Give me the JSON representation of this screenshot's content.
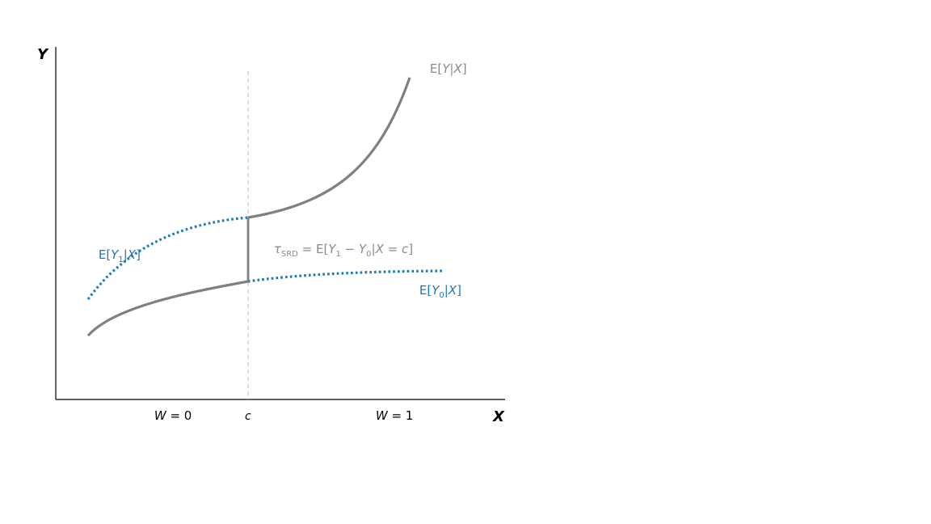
{
  "axes": {
    "y_label": "Y",
    "x_label": "X"
  },
  "regions": {
    "left": {
      "var": "W",
      "eq": " = ",
      "val": "0"
    },
    "right": {
      "var": "W",
      "eq": " = ",
      "val": "1"
    }
  },
  "cutoff_label": "c",
  "curves": {
    "observed": {
      "pre": "E[",
      "v1": "Y",
      "bar": "|",
      "v2": "X",
      "post": "]"
    },
    "treated": {
      "pre": "E[",
      "v1": "Y",
      "sub": "1",
      "bar": "|",
      "v2": "X",
      "post": "]"
    },
    "control": {
      "pre": "E[",
      "v1": "Y",
      "sub": "0",
      "bar": "|",
      "v2": "X",
      "post": "]"
    }
  },
  "effect": {
    "tau": "τ",
    "tau_sub": "SRD",
    "eq1": " = E[",
    "y1": "Y",
    "sub1": "1",
    "minus": " − ",
    "y0": "Y",
    "sub0": "0",
    "bar": "|",
    "x": "X",
    "eq2": " = ",
    "c": "c",
    "close": "]"
  },
  "colors": {
    "observed": "#808080",
    "potential": "#1a79b0",
    "cutoff": "#bdbdbd",
    "axes": "#000000"
  }
}
